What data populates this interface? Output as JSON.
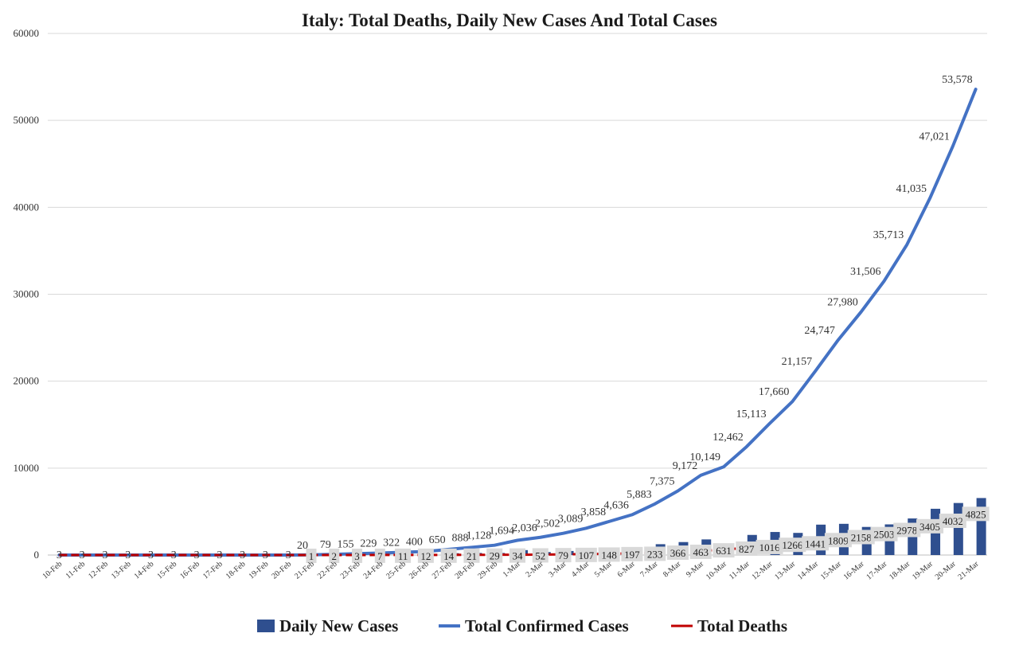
{
  "colors": {
    "bars": "#2f4f8f",
    "line": "#4472c4",
    "deaths": "#c00000",
    "grid": "#d9d9d9",
    "label_box": "#d9d9d9"
  },
  "chart_data": {
    "type": "bar",
    "title": "Italy: Total Deaths, Daily New Cases And Total Cases",
    "ylim": [
      0,
      60000
    ],
    "yticks": [
      "0",
      "10000",
      "20000",
      "30000",
      "40000",
      "50000",
      "60000"
    ],
    "grid": true,
    "legend_position": "bottom",
    "categories": [
      "10-Feb",
      "11-Feb",
      "12-Feb",
      "13-Feb",
      "14-Feb",
      "15-Feb",
      "16-Feb",
      "17-Feb",
      "18-Feb",
      "19-Feb",
      "20-Feb",
      "21-Feb",
      "22-Feb",
      "23-Feb",
      "24-Feb",
      "25-Feb",
      "26-Feb",
      "27-Feb",
      "28-Feb",
      "29-Feb",
      "1-Mar",
      "2-Mar",
      "3-Mar",
      "4-Mar",
      "5-Mar",
      "6-Mar",
      "7-Mar",
      "8-Mar",
      "9-Mar",
      "10-Mar",
      "11-Mar",
      "12-Mar",
      "13-Mar",
      "14-Mar",
      "15-Mar",
      "16-Mar",
      "17-Mar",
      "18-Mar",
      "19-Mar",
      "20-Mar",
      "21-Mar"
    ],
    "series": [
      {
        "name": "Daily New Cases",
        "type": "bar",
        "values": [
          0,
          0,
          0,
          0,
          0,
          0,
          0,
          0,
          0,
          0,
          0,
          17,
          60,
          76,
          54,
          93,
          77,
          210,
          238,
          240,
          566,
          342,
          466,
          587,
          769,
          778,
          1247,
          1492,
          1797,
          977,
          2313,
          2651,
          2547,
          3497,
          3590,
          3233,
          3526,
          4207,
          5322,
          5986,
          6557
        ]
      },
      {
        "name": "Total Confirmed Cases",
        "type": "line",
        "values": [
          3,
          3,
          3,
          3,
          3,
          3,
          3,
          3,
          3,
          3,
          3,
          20,
          79,
          155,
          229,
          322,
          400,
          650,
          888,
          1128,
          1694,
          2036,
          2502,
          3089,
          3858,
          4636,
          5883,
          7375,
          9172,
          10149,
          12462,
          15113,
          17660,
          21157,
          24747,
          27980,
          31506,
          35713,
          41035,
          47021,
          53578
        ],
        "labels": [
          "3",
          "3",
          "3",
          "3",
          "3",
          "3",
          "3",
          "3",
          "3",
          "3",
          "3",
          "20",
          "79",
          "155",
          "229",
          "322",
          "400",
          "650",
          "888",
          "1,128",
          "1,694",
          "2,036",
          "2,502",
          "3,089",
          "3,858",
          "4,636",
          "5,883",
          "7,375",
          "9,172",
          "10,149",
          "12,462",
          "15,113",
          "17,660",
          "21,157",
          "24,747",
          "27,980",
          "31,506",
          "35,713",
          "41,035",
          "47,021",
          "53,578"
        ]
      },
      {
        "name": "Total Deaths",
        "type": "line",
        "values": [
          0,
          0,
          0,
          0,
          0,
          0,
          0,
          0,
          0,
          0,
          0,
          1,
          2,
          3,
          7,
          11,
          12,
          14,
          21,
          29,
          34,
          52,
          79,
          107,
          148,
          197,
          233,
          366,
          463,
          631,
          827,
          1016,
          1266,
          1441,
          1809,
          2158,
          2503,
          2978,
          3405,
          4032,
          4825
        ],
        "labels": [
          "",
          "",
          "",
          "",
          "",
          "",
          "",
          "",
          "",
          "",
          "",
          "1",
          "2",
          "3",
          "7",
          "11",
          "12",
          "14",
          "21",
          "29",
          "34",
          "52",
          "79",
          "107",
          "148",
          "197",
          "233",
          "366",
          "463",
          "631",
          "827",
          "1016",
          "1266",
          "1441",
          "1809",
          "2158",
          "2503",
          "2978",
          "3405",
          "4032",
          "4825"
        ]
      }
    ]
  }
}
